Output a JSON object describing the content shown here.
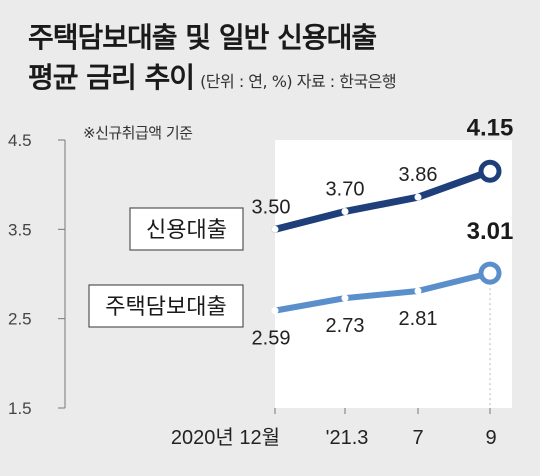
{
  "title_line1": "주택담보대출 및 일반 신용대출",
  "title_line2": "평균 금리 추이",
  "unit_note": "(단위 : 연, %) 자료 : 한국은행",
  "footnote": "※신규취급액 기준",
  "colors": {
    "credit": "#1f3f7a",
    "mortgage": "#5b8fcc",
    "background": "#ebebeb",
    "plot_area": "#ffffff"
  },
  "chart_data": {
    "type": "line",
    "categories": [
      "2020년 12월",
      "'21.3",
      "7",
      "9"
    ],
    "ylim": [
      1.5,
      4.5
    ],
    "yticks": [
      "4.5",
      "3.5",
      "2.5",
      "1.5"
    ],
    "grid": false,
    "series": [
      {
        "name": "신용대출",
        "values": [
          3.5,
          3.7,
          3.86,
          4.15
        ],
        "labels": [
          "3.50",
          "3.70",
          "3.86",
          "4.15"
        ]
      },
      {
        "name": "주택담보대출",
        "values": [
          2.59,
          2.73,
          2.81,
          3.01
        ],
        "labels": [
          "2.59",
          "2.73",
          "2.81",
          "3.01"
        ]
      }
    ]
  }
}
